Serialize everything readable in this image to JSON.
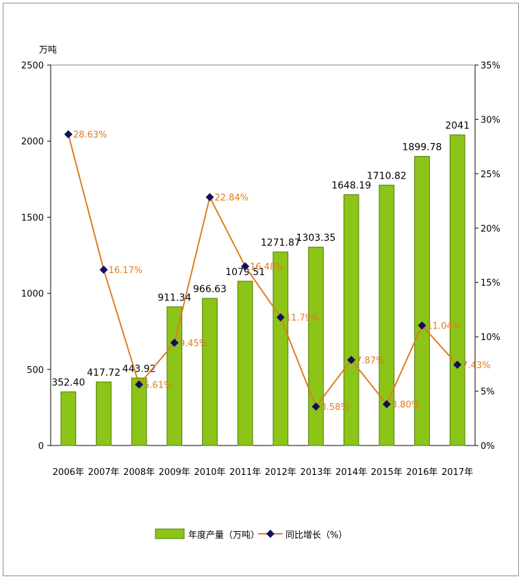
{
  "chart_data": {
    "type": "bar",
    "left_unit": "万吨",
    "categories": [
      "2006年",
      "2007年",
      "2008年",
      "2009年",
      "2010年",
      "2011年",
      "2012年",
      "2013年",
      "2014年",
      "2015年",
      "2016年",
      "2017年"
    ],
    "series": [
      {
        "name": "年度产量（万吨）",
        "type": "bar",
        "axis": "left",
        "values": [
          352.4,
          417.72,
          443.92,
          911.34,
          966.63,
          1079.51,
          1271.87,
          1303.35,
          1648.19,
          1710.82,
          1899.78,
          2041
        ],
        "labels": [
          "352.40",
          "417.72",
          "443.92",
          "911.34",
          "966.63",
          "1079.51",
          "1271.87",
          "1303.35",
          "1648.19",
          "1710.82",
          "1899.78",
          "2041"
        ]
      },
      {
        "name": "同比增长（%）",
        "type": "line",
        "axis": "right",
        "values": [
          28.63,
          16.17,
          5.61,
          9.45,
          22.84,
          16.48,
          11.79,
          3.58,
          7.87,
          3.8,
          11.04,
          7.43
        ],
        "labels": [
          "28.63%",
          "16.17%",
          "5.61%",
          "9.45%",
          "22.84%",
          "16.48%",
          "11.79%",
          "3.58%",
          "7.87%",
          "3.80%",
          "11.04%",
          "7.43%"
        ]
      }
    ],
    "y_left": {
      "min": 0,
      "max": 2500,
      "ticks": [
        "0",
        "500",
        "1000",
        "1500",
        "2000",
        "2500"
      ]
    },
    "y_right": {
      "min": 0,
      "max": 35,
      "ticks": [
        "0%",
        "5%",
        "10%",
        "15%",
        "20%",
        "25%",
        "30%",
        "35%"
      ]
    },
    "legend": {
      "placement": "bottom"
    },
    "grid": false,
    "colors": {
      "bar": "#8cc418",
      "bar_edge": "#4e7a0c",
      "line": "#e07b1c",
      "marker": "#10105e",
      "pct_label": "#e07b1c"
    }
  }
}
